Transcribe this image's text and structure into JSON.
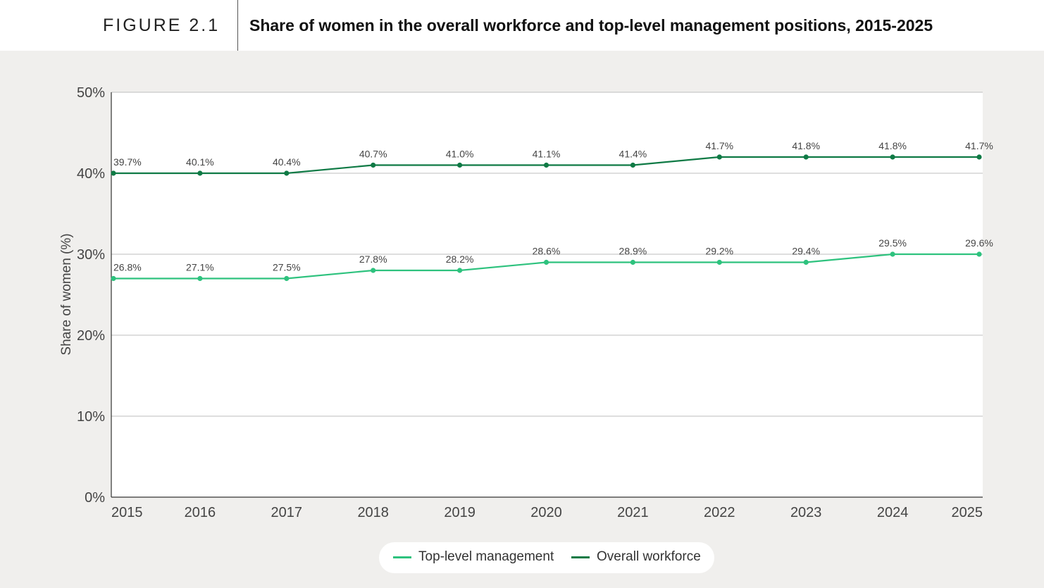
{
  "header": {
    "figure_label": "FIGURE 2.1",
    "title": "Share of women in the overall workforce and top-level management positions, 2015-2025"
  },
  "colors": {
    "top_management": "#2ec27e",
    "overall_workforce": "#0f7a45",
    "plot_background": "#ffffff",
    "page_background": "#f0efed",
    "gridline": "#bdbdbd"
  },
  "chart_data": {
    "type": "line",
    "title": "Share of women in the overall workforce and top-level management positions, 2015-2025",
    "xlabel": "",
    "ylabel": "Share of women (%)",
    "ylim": [
      0,
      50
    ],
    "yticks": [
      0,
      10,
      20,
      30,
      40,
      50
    ],
    "ytick_labels": [
      "0%",
      "10%",
      "20%",
      "30%",
      "40%",
      "50%"
    ],
    "x": [
      "2015",
      "2016",
      "2017",
      "2018",
      "2019",
      "2020",
      "2021",
      "2022",
      "2023",
      "2024",
      "2025"
    ],
    "grid": "horizontal",
    "legend_position": "bottom-center",
    "series": [
      {
        "name": "Top-level management",
        "color": "#2ec27e",
        "values": [
          27,
          27,
          27,
          28,
          28,
          29,
          29,
          29,
          29,
          30,
          30
        ],
        "labels": [
          "26.8%",
          "27.1%",
          "27.5%",
          "27.8%",
          "28.2%",
          "28.6%",
          "28.9%",
          "29.2%",
          "29.4%",
          "29.5%",
          "29.6%"
        ]
      },
      {
        "name": "Overall workforce",
        "color": "#0f7a45",
        "values": [
          40,
          40,
          40,
          41,
          41,
          41,
          41,
          42,
          42,
          42,
          42
        ],
        "labels": [
          "39.7%",
          "40.1%",
          "40.4%",
          "40.7%",
          "41.0%",
          "41.1%",
          "41.4%",
          "41.7%",
          "41.8%",
          "41.8%",
          "41.7%"
        ]
      }
    ]
  }
}
